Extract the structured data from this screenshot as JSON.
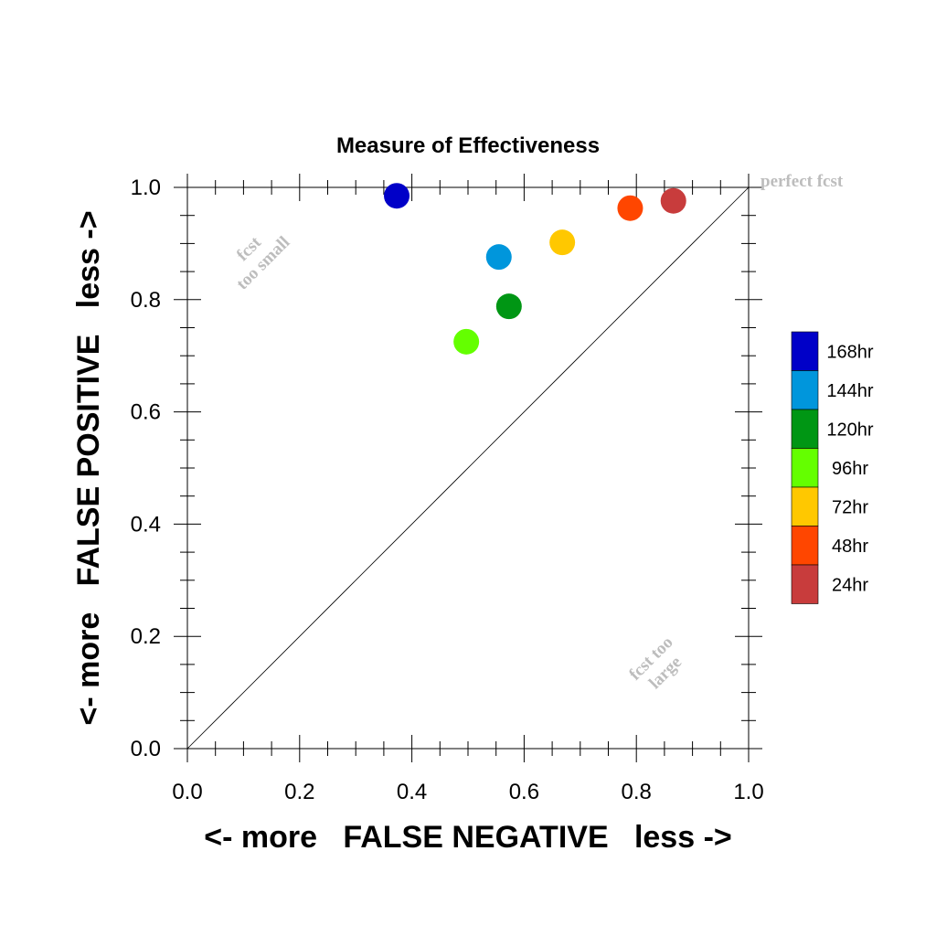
{
  "chart_data": {
    "type": "scatter",
    "title": "Measure of Effectiveness",
    "xlabel": "<- more   FALSE NEGATIVE   less ->",
    "ylabel": "<- more   FALSE POSITIVE   less ->",
    "xlim": [
      0.0,
      1.0
    ],
    "ylim": [
      0.0,
      1.0
    ],
    "xticks": [
      "0.0",
      "0.2",
      "0.4",
      "0.6",
      "0.8",
      "1.0"
    ],
    "yticks": [
      "0.0",
      "0.2",
      "0.4",
      "0.6",
      "0.8",
      "1.0"
    ],
    "grid": false,
    "reference_line": "diagonal",
    "legend_position": "right",
    "annotations": {
      "perfect": "perfect fcst",
      "small_1": "fcst",
      "small_2": "too small",
      "large_1": "fcst too",
      "large_2": "large"
    },
    "series": [
      {
        "name": "168hr",
        "color": "#0000c8",
        "x": 0.373,
        "y": 0.985
      },
      {
        "name": "144hr",
        "color": "#0096dc",
        "x": 0.555,
        "y": 0.876
      },
      {
        "name": "120hr",
        "color": "#009614",
        "x": 0.573,
        "y": 0.788
      },
      {
        "name": "96hr",
        "color": "#64ff00",
        "x": 0.497,
        "y": 0.725
      },
      {
        "name": "72hr",
        "color": "#ffc800",
        "x": 0.668,
        "y": 0.902
      },
      {
        "name": "48hr",
        "color": "#ff4600",
        "x": 0.789,
        "y": 0.963
      },
      {
        "name": "24hr",
        "color": "#c83c3c",
        "x": 0.866,
        "y": 0.976
      }
    ]
  }
}
